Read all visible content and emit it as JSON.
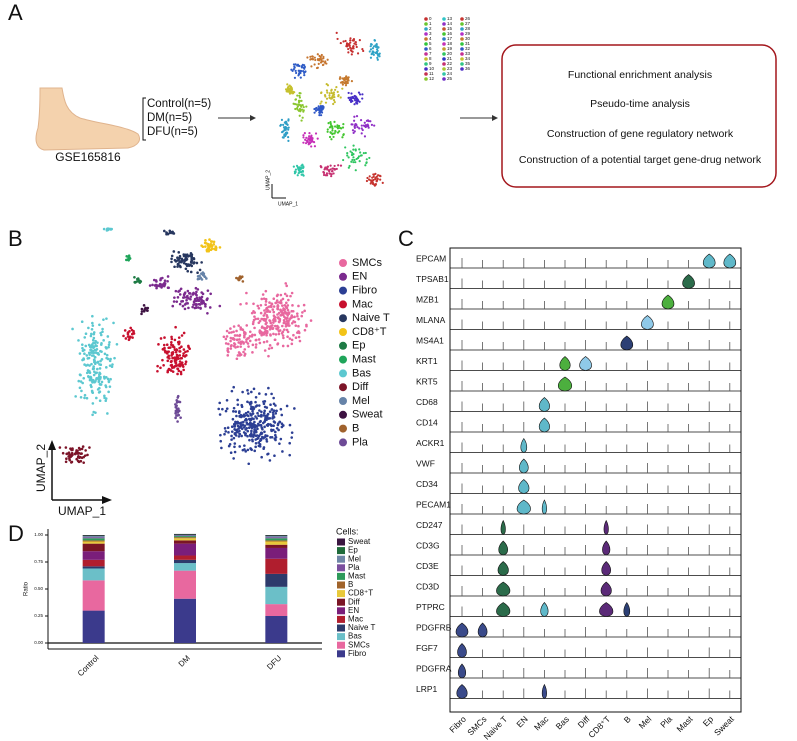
{
  "panel_labels": [
    "A",
    "B",
    "C",
    "D"
  ],
  "panel_a": {
    "dataset": "GSE165816",
    "groups": [
      "Control(n=5)",
      "DM(n=5)",
      "DFU(n=5)"
    ],
    "umap_axes": [
      "UMAP_1",
      "UMAP_2"
    ],
    "clusters": [
      "0",
      "1",
      "2",
      "3",
      "4",
      "5",
      "6",
      "7",
      "8",
      "9",
      "10",
      "11",
      "12",
      "13",
      "14",
      "15",
      "16",
      "17",
      "18",
      "19",
      "20",
      "21",
      "22",
      "23",
      "24",
      "25",
      "26",
      "27",
      "28",
      "29",
      "30",
      "31",
      "32",
      "33",
      "34",
      "35",
      "36"
    ],
    "analyses": [
      "Functional enrichment analysis",
      "Pseudo-time analysis",
      "Construction of gene regulatory network",
      "Construction of a potential target gene-drug network"
    ]
  },
  "panel_b": {
    "umap_axes": [
      "UMAP_1",
      "UMAP_2"
    ],
    "cell_types": [
      {
        "name": "SMCs",
        "color": "#e8689f"
      },
      {
        "name": "EN",
        "color": "#7b2a8e"
      },
      {
        "name": "Fibro",
        "color": "#2c3f94"
      },
      {
        "name": "Mac",
        "color": "#c8102e"
      },
      {
        "name": "Naive T",
        "color": "#27375f"
      },
      {
        "name": "CD8⁺T",
        "color": "#f2c318"
      },
      {
        "name": "Ep",
        "color": "#1e7b45"
      },
      {
        "name": "Mast",
        "color": "#1fa55a"
      },
      {
        "name": "Bas",
        "color": "#5cc8d0"
      },
      {
        "name": "Diff",
        "color": "#7c1428"
      },
      {
        "name": "Mel",
        "color": "#6683a8"
      },
      {
        "name": "Sweat",
        "color": "#3d1242"
      },
      {
        "name": "B",
        "color": "#a0622d"
      },
      {
        "name": "Pla",
        "color": "#6d4a96"
      }
    ]
  },
  "panel_c": {
    "genes": [
      "EPCAM",
      "TPSAB1",
      "MZB1",
      "MLANA",
      "MS4A1",
      "KRT1",
      "KRT5",
      "CD68",
      "CD14",
      "ACKR1",
      "VWF",
      "CD34",
      "PECAM1",
      "CD247",
      "CD3G",
      "CD3E",
      "CD3D",
      "PTPRC",
      "PDGFRB",
      "FGF7",
      "PDGFRA",
      "LRP1"
    ],
    "cell_types": [
      "Fibro",
      "SMCs",
      "Naive T",
      "EN",
      "Mac",
      "Bas",
      "Diff",
      "CD8⁺T",
      "B",
      "Mel",
      "Pla",
      "Mast",
      "Ep",
      "Sweat"
    ]
  },
  "chart_data": {
    "type": "stacked_bar",
    "y_label": "Ratio",
    "legend_title": "Cells:",
    "categories": [
      "Control",
      "DM",
      "DFU"
    ],
    "ylim": [
      0,
      1
    ],
    "yticks": [
      {
        "value": 0,
        "label": "0.00"
      },
      {
        "value": 0.25,
        "label": "0.25"
      },
      {
        "value": 0.5,
        "label": "0.50"
      },
      {
        "value": 0.75,
        "label": "0.75"
      },
      {
        "value": 1,
        "label": "1.00"
      }
    ],
    "series": [
      {
        "name": "Fibro",
        "color": "#3b3a8c",
        "values": [
          0.3,
          0.41,
          0.25
        ]
      },
      {
        "name": "SMCs",
        "color": "#e8689f",
        "values": [
          0.28,
          0.26,
          0.11
        ]
      },
      {
        "name": "Bas",
        "color": "#6bbfc8",
        "values": [
          0.11,
          0.07,
          0.16
        ]
      },
      {
        "name": "Naive T",
        "color": "#2d3a6b",
        "values": [
          0.02,
          0.03,
          0.12
        ]
      },
      {
        "name": "Mac",
        "color": "#b01e2e",
        "values": [
          0.06,
          0.04,
          0.14
        ]
      },
      {
        "name": "EN",
        "color": "#7a1e7a",
        "values": [
          0.08,
          0.11,
          0.1
        ]
      },
      {
        "name": "Diff",
        "color": "#7a1525",
        "values": [
          0.07,
          0.03,
          0.03
        ]
      },
      {
        "name": "CD8⁺T",
        "color": "#e8c93a",
        "values": [
          0.02,
          0.02,
          0.03
        ]
      },
      {
        "name": "B",
        "color": "#a0632a",
        "values": [
          0.01,
          0.01,
          0.01
        ]
      },
      {
        "name": "Mast",
        "color": "#2e9a5a",
        "values": [
          0.02,
          0.01,
          0.02
        ]
      },
      {
        "name": "Pla",
        "color": "#7b4f9e",
        "values": [
          0.01,
          0.005,
          0.01
        ]
      },
      {
        "name": "Mel",
        "color": "#6f86a6",
        "values": [
          0.01,
          0.005,
          0.01
        ]
      },
      {
        "name": "Ep",
        "color": "#1f6b3a",
        "values": [
          0.005,
          0.005,
          0.005
        ]
      },
      {
        "name": "Sweat",
        "color": "#3a1640",
        "values": [
          0.005,
          0.005,
          0.005
        ]
      }
    ]
  }
}
